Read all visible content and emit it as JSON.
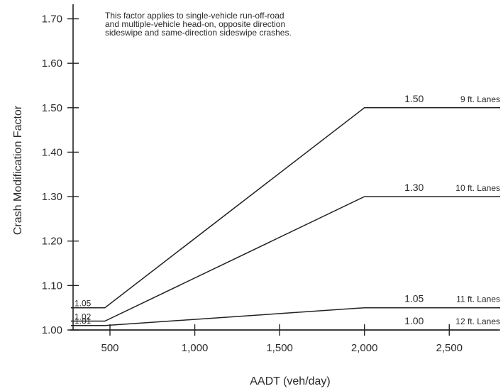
{
  "chart_data": {
    "type": "line",
    "xlabel": "AADT (veh/day)",
    "ylabel": "Crash Modification Factor",
    "xlim": [
      270,
      2800
    ],
    "ylim": [
      1.0,
      1.72
    ],
    "x_ticks": [
      500,
      1000,
      1500,
      2000,
      2500
    ],
    "x_tick_labels": [
      "500",
      "1,000",
      "1,500",
      "2,000",
      "2,500"
    ],
    "y_ticks": [
      1.0,
      1.1,
      1.2,
      1.3,
      1.4,
      1.5,
      1.6,
      1.7
    ],
    "y_tick_labels": [
      "1.00",
      "1.10",
      "1.20",
      "1.30",
      "1.40",
      "1.50",
      "1.60",
      "1.70"
    ],
    "grid": false,
    "legend": "none",
    "note_lines": [
      "This factor applies to single-vehicle run-off-road",
      "and multiple-vehicle head-on, opposite direction",
      "sideswipe and same-direction sideswipe crashes."
    ],
    "series": [
      {
        "name": "9 ft. Lanes",
        "x": [
          270,
          470,
          2000,
          2800
        ],
        "y": [
          1.05,
          1.05,
          1.5,
          1.5
        ],
        "start_label": "1.05",
        "end_label": "1.50"
      },
      {
        "name": "10 ft. Lanes",
        "x": [
          270,
          470,
          2000,
          2800
        ],
        "y": [
          1.02,
          1.02,
          1.3,
          1.3
        ],
        "start_label": "1.02",
        "end_label": "1.30"
      },
      {
        "name": "11 ft. Lanes",
        "x": [
          270,
          470,
          2000,
          2800
        ],
        "y": [
          1.01,
          1.01,
          1.05,
          1.05
        ],
        "start_label": "1.01",
        "end_label": "1.05"
      },
      {
        "name": "12 ft. Lanes",
        "x": [
          270,
          470,
          2000,
          2800
        ],
        "y": [
          1.0,
          1.0,
          1.0,
          1.0
        ],
        "start_label": "",
        "end_label": "1.00"
      }
    ]
  }
}
